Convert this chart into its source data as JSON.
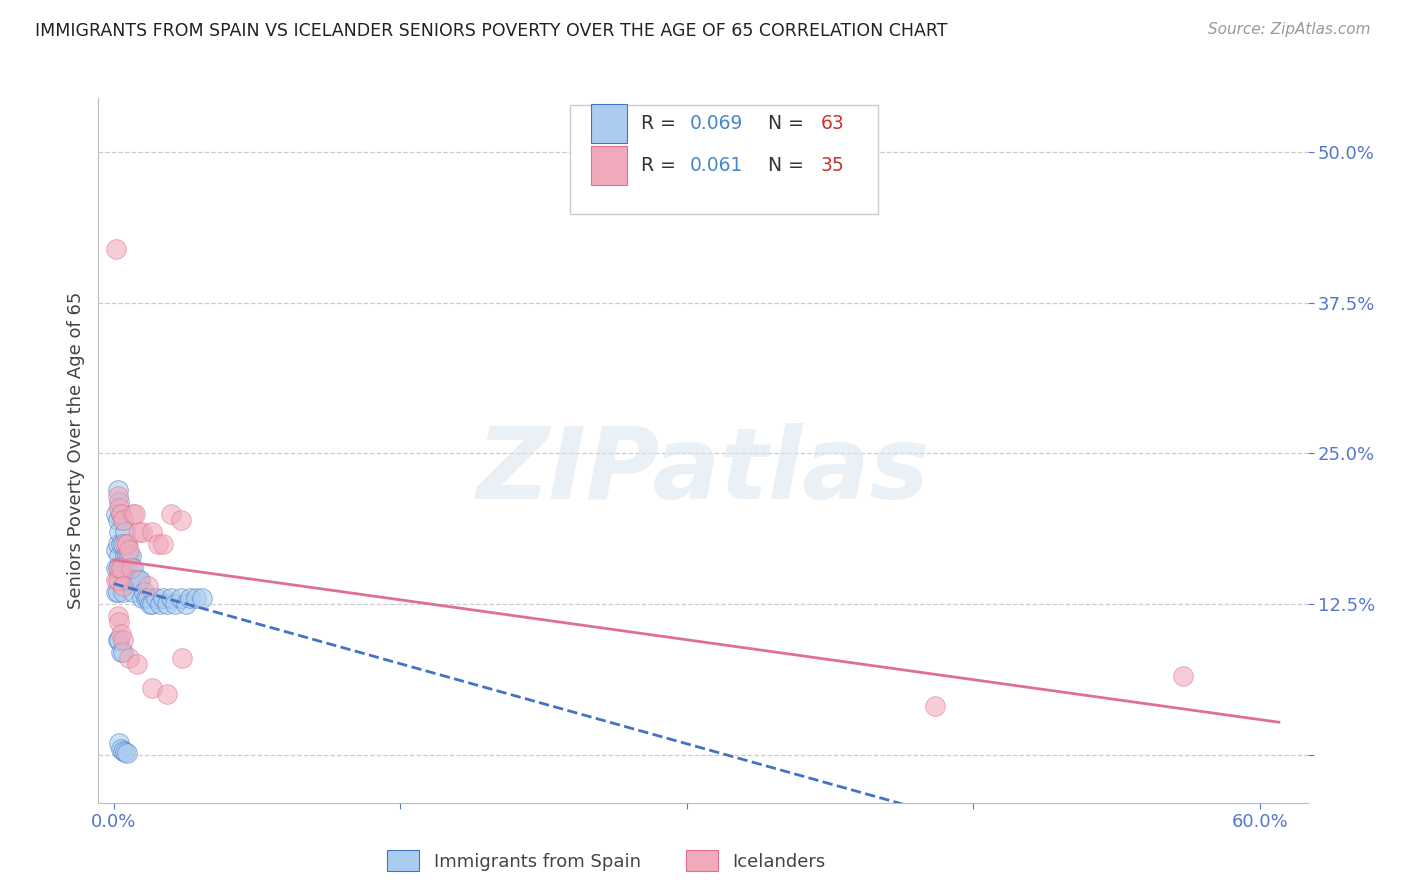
{
  "title": "IMMIGRANTS FROM SPAIN VS ICELANDER SENIORS POVERTY OVER THE AGE OF 65 CORRELATION CHART",
  "source": "Source: ZipAtlas.com",
  "ylabel": "Seniors Poverty Over the Age of 65",
  "xlim": [
    -0.008,
    0.625
  ],
  "ylim": [
    -0.04,
    0.545
  ],
  "color_blue": "#aaccee",
  "color_pink": "#f0aabb",
  "color_trendline_blue": "#4472c4",
  "color_trendline_pink": "#e07090",
  "r1": "0.069",
  "n1": "63",
  "r2": "0.061",
  "n2": "35",
  "spain_x": [
    0.001,
    0.001,
    0.001,
    0.001,
    0.002,
    0.002,
    0.002,
    0.002,
    0.002,
    0.003,
    0.003,
    0.003,
    0.003,
    0.004,
    0.004,
    0.004,
    0.005,
    0.005,
    0.005,
    0.005,
    0.006,
    0.006,
    0.006,
    0.007,
    0.007,
    0.007,
    0.007,
    0.008,
    0.008,
    0.009,
    0.009,
    0.01,
    0.01,
    0.011,
    0.012,
    0.013,
    0.014,
    0.015,
    0.016,
    0.017,
    0.018,
    0.019,
    0.02,
    0.022,
    0.024,
    0.026,
    0.028,
    0.03,
    0.032,
    0.035,
    0.038,
    0.04,
    0.043,
    0.046,
    0.002,
    0.003,
    0.004,
    0.005,
    0.003,
    0.004,
    0.005,
    0.006,
    0.007
  ],
  "spain_y": [
    0.2,
    0.17,
    0.155,
    0.135,
    0.22,
    0.195,
    0.175,
    0.155,
    0.135,
    0.21,
    0.185,
    0.165,
    0.145,
    0.2,
    0.175,
    0.155,
    0.195,
    0.175,
    0.155,
    0.135,
    0.185,
    0.165,
    0.145,
    0.175,
    0.165,
    0.155,
    0.145,
    0.165,
    0.145,
    0.165,
    0.145,
    0.155,
    0.135,
    0.145,
    0.145,
    0.145,
    0.145,
    0.13,
    0.135,
    0.13,
    0.13,
    0.125,
    0.125,
    0.13,
    0.125,
    0.13,
    0.125,
    0.13,
    0.125,
    0.13,
    0.125,
    0.13,
    0.13,
    0.13,
    0.095,
    0.095,
    0.085,
    0.085,
    0.01,
    0.005,
    0.003,
    0.002,
    0.001
  ],
  "iceland_x": [
    0.001,
    0.001,
    0.002,
    0.002,
    0.003,
    0.003,
    0.004,
    0.004,
    0.005,
    0.005,
    0.006,
    0.007,
    0.008,
    0.009,
    0.01,
    0.011,
    0.013,
    0.015,
    0.018,
    0.02,
    0.023,
    0.026,
    0.03,
    0.035,
    0.002,
    0.003,
    0.004,
    0.005,
    0.008,
    0.012,
    0.02,
    0.028,
    0.036,
    0.56,
    0.43
  ],
  "iceland_y": [
    0.42,
    0.145,
    0.215,
    0.145,
    0.205,
    0.155,
    0.2,
    0.155,
    0.195,
    0.14,
    0.175,
    0.175,
    0.17,
    0.155,
    0.2,
    0.2,
    0.185,
    0.185,
    0.14,
    0.185,
    0.175,
    0.175,
    0.2,
    0.195,
    0.115,
    0.11,
    0.1,
    0.095,
    0.08,
    0.075,
    0.055,
    0.05,
    0.08,
    0.065,
    0.04
  ]
}
